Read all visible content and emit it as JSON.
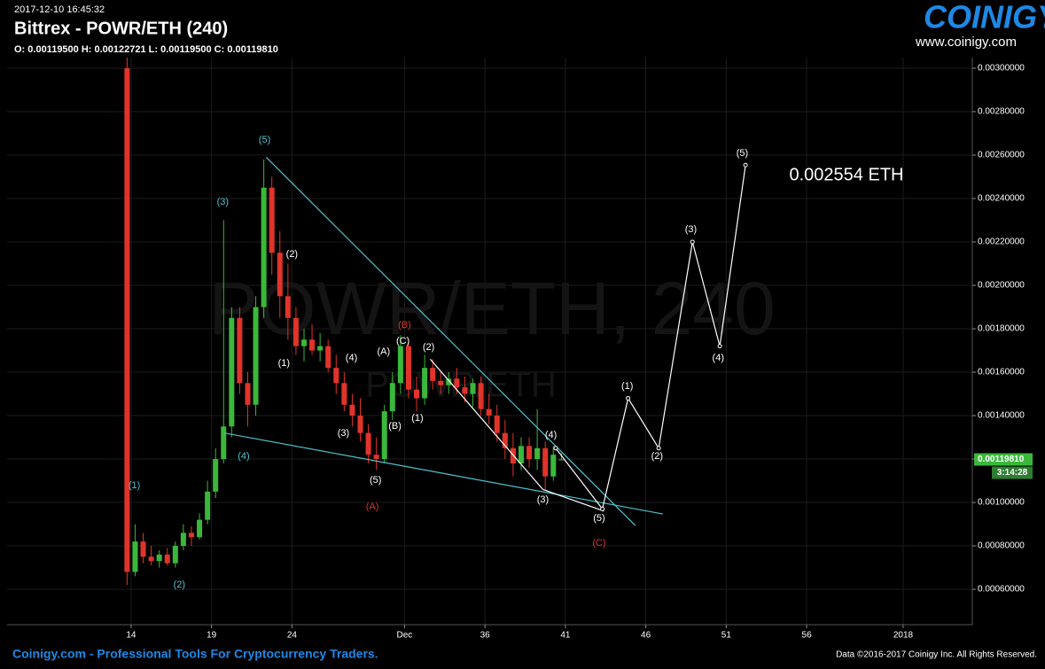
{
  "chart_data": {
    "type": "candlestick",
    "timestamp": "2017-12-10 16:45:32",
    "title": "Bittrex - POWR/ETH (240)",
    "ohlc_text": "O: 0.00119500 H: 0.00122721 L: 0.00119500 C: 0.00119810",
    "watermark": "POWR/ETH, 240",
    "watermark_small": "POWR/ETH",
    "logo": "COINIGY",
    "logo_url": "www.coinigy.com",
    "footer_left": "Coinigy.com - Professional Tools For Cryptocurrency Traders.",
    "footer_right": "Data ©2016-2017 Coinigy Inc. All Rights Reserved.",
    "target_label": "0.002554 ETH",
    "last_price": {
      "value": 0.0011981,
      "label": "0.00119810"
    },
    "countdown": "3:14:28",
    "up_color": "#3bb83b",
    "down_color": "#e0342b",
    "grid": true,
    "xlim": [
      6.29,
      66.3
    ],
    "ylim": [
      0.000437,
      0.003049
    ],
    "xticks": [
      14,
      19,
      24,
      {
        "value": 31,
        "label": "Dec"
      },
      36,
      41,
      46,
      51,
      56,
      {
        "value": 62,
        "label": "2018"
      }
    ],
    "yticks": [
      {
        "value": 0.0006,
        "label": "0.00060000"
      },
      {
        "value": 0.0008,
        "label": "0.00080000"
      },
      {
        "value": 0.001,
        "label": "0.00100000"
      },
      {
        "value": 0.0012,
        "label": "0.00120000"
      },
      {
        "value": 0.0014,
        "label": "0.00140000"
      },
      {
        "value": 0.0016,
        "label": "0.00160000"
      },
      {
        "value": 0.0018,
        "label": "0.00180000"
      },
      {
        "value": 0.002,
        "label": "0.00200000"
      },
      {
        "value": 0.0022,
        "label": "0.00220000"
      },
      {
        "value": 0.0024,
        "label": "0.00240000"
      },
      {
        "value": 0.0026,
        "label": "0.00260000"
      },
      {
        "value": 0.0028,
        "label": "0.00280000"
      },
      {
        "value": 0.003,
        "label": "0.00300000"
      }
    ],
    "candles": [
      {
        "x": 13.75,
        "open": 0.003,
        "high": 0.00305,
        "low": 0.00062,
        "close": 0.00068
      },
      {
        "x": 14.25,
        "open": 0.00068,
        "high": 0.0009,
        "low": 0.00066,
        "close": 0.00082
      },
      {
        "x": 14.75,
        "open": 0.00082,
        "high": 0.00086,
        "low": 0.00072,
        "close": 0.00075
      },
      {
        "x": 15.25,
        "open": 0.00075,
        "high": 0.0008,
        "low": 0.00071,
        "close": 0.00073
      },
      {
        "x": 15.75,
        "open": 0.00073,
        "high": 0.00078,
        "low": 0.0007,
        "close": 0.00076
      },
      {
        "x": 16.25,
        "open": 0.00076,
        "high": 0.00079,
        "low": 0.00071,
        "close": 0.00072
      },
      {
        "x": 16.75,
        "open": 0.00072,
        "high": 0.00082,
        "low": 0.0007,
        "close": 0.0008
      },
      {
        "x": 17.25,
        "open": 0.0008,
        "high": 0.0009,
        "low": 0.00078,
        "close": 0.00086
      },
      {
        "x": 17.75,
        "open": 0.00086,
        "high": 0.00089,
        "low": 0.0008,
        "close": 0.00084
      },
      {
        "x": 18.25,
        "open": 0.00084,
        "high": 0.00095,
        "low": 0.00083,
        "close": 0.00092
      },
      {
        "x": 18.75,
        "open": 0.00092,
        "high": 0.0011,
        "low": 0.0009,
        "close": 0.00105
      },
      {
        "x": 19.25,
        "open": 0.00105,
        "high": 0.00125,
        "low": 0.00102,
        "close": 0.0012
      },
      {
        "x": 19.75,
        "open": 0.0012,
        "high": 0.0023,
        "low": 0.00118,
        "close": 0.00135
      },
      {
        "x": 20.25,
        "open": 0.00135,
        "high": 0.0019,
        "low": 0.0013,
        "close": 0.00185
      },
      {
        "x": 20.75,
        "open": 0.00185,
        "high": 0.0019,
        "low": 0.0015,
        "close": 0.00155
      },
      {
        "x": 21.25,
        "open": 0.00155,
        "high": 0.0016,
        "low": 0.00135,
        "close": 0.00145
      },
      {
        "x": 21.75,
        "open": 0.00145,
        "high": 0.00195,
        "low": 0.0014,
        "close": 0.0019
      },
      {
        "x": 22.25,
        "open": 0.0019,
        "high": 0.00258,
        "low": 0.00185,
        "close": 0.00245
      },
      {
        "x": 22.75,
        "open": 0.00245,
        "high": 0.0025,
        "low": 0.00205,
        "close": 0.00215
      },
      {
        "x": 23.25,
        "open": 0.00215,
        "high": 0.00225,
        "low": 0.00185,
        "close": 0.00195
      },
      {
        "x": 23.75,
        "open": 0.00195,
        "high": 0.0021,
        "low": 0.00175,
        "close": 0.00185
      },
      {
        "x": 24.25,
        "open": 0.00185,
        "high": 0.0019,
        "low": 0.00168,
        "close": 0.00172
      },
      {
        "x": 24.75,
        "open": 0.00172,
        "high": 0.0018,
        "low": 0.00165,
        "close": 0.00175
      },
      {
        "x": 25.25,
        "open": 0.00175,
        "high": 0.00182,
        "low": 0.00168,
        "close": 0.0017
      },
      {
        "x": 25.75,
        "open": 0.0017,
        "high": 0.00178,
        "low": 0.00165,
        "close": 0.00172
      },
      {
        "x": 26.25,
        "open": 0.00172,
        "high": 0.00175,
        "low": 0.0016,
        "close": 0.00162
      },
      {
        "x": 26.75,
        "open": 0.00162,
        "high": 0.00168,
        "low": 0.0015,
        "close": 0.00155
      },
      {
        "x": 27.25,
        "open": 0.00155,
        "high": 0.0016,
        "low": 0.00142,
        "close": 0.00145
      },
      {
        "x": 27.75,
        "open": 0.00145,
        "high": 0.0015,
        "low": 0.00135,
        "close": 0.0014
      },
      {
        "x": 28.25,
        "open": 0.0014,
        "high": 0.00148,
        "low": 0.00128,
        "close": 0.00132
      },
      {
        "x": 28.75,
        "open": 0.00132,
        "high": 0.00136,
        "low": 0.00118,
        "close": 0.00122
      },
      {
        "x": 29.25,
        "open": 0.00122,
        "high": 0.0013,
        "low": 0.00115,
        "close": 0.0012
      },
      {
        "x": 29.75,
        "open": 0.0012,
        "high": 0.00145,
        "low": 0.00118,
        "close": 0.00142
      },
      {
        "x": 30.25,
        "open": 0.00142,
        "high": 0.0016,
        "low": 0.00138,
        "close": 0.00155
      },
      {
        "x": 30.75,
        "open": 0.00155,
        "high": 0.00177,
        "low": 0.0015,
        "close": 0.00172
      },
      {
        "x": 31.25,
        "open": 0.00172,
        "high": 0.00175,
        "low": 0.00148,
        "close": 0.00152
      },
      {
        "x": 31.75,
        "open": 0.00152,
        "high": 0.00158,
        "low": 0.00142,
        "close": 0.00148
      },
      {
        "x": 32.25,
        "open": 0.00148,
        "high": 0.00168,
        "low": 0.00145,
        "close": 0.00162
      },
      {
        "x": 32.75,
        "open": 0.00162,
        "high": 0.00166,
        "low": 0.00152,
        "close": 0.00156
      },
      {
        "x": 33.25,
        "open": 0.00156,
        "high": 0.0016,
        "low": 0.0015,
        "close": 0.00154
      },
      {
        "x": 33.75,
        "open": 0.00154,
        "high": 0.0016,
        "low": 0.0015,
        "close": 0.00157
      },
      {
        "x": 34.25,
        "open": 0.00157,
        "high": 0.00162,
        "low": 0.0015,
        "close": 0.00153
      },
      {
        "x": 34.75,
        "open": 0.00153,
        "high": 0.00158,
        "low": 0.00146,
        "close": 0.0015
      },
      {
        "x": 35.25,
        "open": 0.0015,
        "high": 0.00157,
        "low": 0.00144,
        "close": 0.00155
      },
      {
        "x": 35.75,
        "open": 0.00155,
        "high": 0.00158,
        "low": 0.0014,
        "close": 0.00143
      },
      {
        "x": 36.25,
        "open": 0.00143,
        "high": 0.0015,
        "low": 0.00136,
        "close": 0.0014
      },
      {
        "x": 36.75,
        "open": 0.0014,
        "high": 0.00145,
        "low": 0.00128,
        "close": 0.00132
      },
      {
        "x": 37.25,
        "open": 0.00132,
        "high": 0.00138,
        "low": 0.0012,
        "close": 0.00125
      },
      {
        "x": 37.75,
        "open": 0.00125,
        "high": 0.00132,
        "low": 0.00112,
        "close": 0.00118
      },
      {
        "x": 38.25,
        "open": 0.00118,
        "high": 0.0013,
        "low": 0.00115,
        "close": 0.00126
      },
      {
        "x": 38.75,
        "open": 0.00126,
        "high": 0.0013,
        "low": 0.00116,
        "close": 0.0012
      },
      {
        "x": 39.25,
        "open": 0.0012,
        "high": 0.00143,
        "low": 0.00115,
        "close": 0.00125
      },
      {
        "x": 39.75,
        "open": 0.00125,
        "high": 0.00128,
        "low": 0.00106,
        "close": 0.00112
      },
      {
        "x": 40.25,
        "open": 0.00112,
        "high": 0.00126,
        "low": 0.0011,
        "close": 0.00122
      },
      {
        "x": 40.75,
        "open": 0.001195,
        "high": 0.00122721,
        "low": 0.001195,
        "close": 0.0011981
      }
    ],
    "lines": [
      {
        "color": "#4fc3d0",
        "x": [
          22.4,
          45.35
        ],
        "y": [
          0.00259,
          0.000894
        ]
      },
      {
        "color": "#4fc3d0",
        "x": [
          19.8,
          47.06
        ],
        "y": [
          0.00132,
          0.000947
        ]
      },
      {
        "color": "#ffffff",
        "x": [
          32.6,
          39.6,
          43.4
        ],
        "y": [
          0.00166,
          0.00106,
          0.00096
        ]
      },
      {
        "color": "#ffffff",
        "markers": true,
        "x": [
          40.4,
          43.3,
          44.9,
          46.8,
          48.9,
          50.6,
          52.2
        ],
        "y": [
          0.00125,
          0.00097,
          0.00148,
          0.00125,
          0.0022,
          0.00172,
          0.002554
        ]
      }
    ],
    "annotations": [
      {
        "text": "(1)",
        "x": 14.2,
        "y": 0.001078,
        "color": "#4fc3d0"
      },
      {
        "text": "(2)",
        "x": 17.0,
        "y": 0.00062,
        "color": "#4fc3d0"
      },
      {
        "text": "(3)",
        "x": 19.7,
        "y": 0.002384,
        "color": "#4fc3d0"
      },
      {
        "text": "(4)",
        "x": 21.0,
        "y": 0.001212,
        "color": "#4fc3d0"
      },
      {
        "text": "(5)",
        "x": 22.3,
        "y": 0.00267,
        "color": "#4fc3d0"
      },
      {
        "text": "(2)",
        "x": 24.0,
        "y": 0.002143,
        "color": "#ffffff"
      },
      {
        "text": "(1)",
        "x": 23.5,
        "y": 0.001641,
        "color": "#ffffff"
      },
      {
        "text": "(4)",
        "x": 27.7,
        "y": 0.001665,
        "color": "#ffffff"
      },
      {
        "text": "(3)",
        "x": 27.2,
        "y": 0.001318,
        "color": "#ffffff"
      },
      {
        "text": "(5)",
        "x": 29.2,
        "y": 0.001102,
        "color": "#ffffff"
      },
      {
        "text": "(A)",
        "x": 29.0,
        "y": 0.00098,
        "color": "#d9342b"
      },
      {
        "text": "(A)",
        "x": 29.7,
        "y": 0.001694,
        "color": "#ffffff"
      },
      {
        "text": "(B)",
        "x": 30.4,
        "y": 0.001351,
        "color": "#ffffff"
      },
      {
        "text": "(B)",
        "x": 31.0,
        "y": 0.001816,
        "color": "#d9342b"
      },
      {
        "text": "(C)",
        "x": 30.9,
        "y": 0.001743,
        "color": "#ffffff"
      },
      {
        "text": "(2)",
        "x": 32.5,
        "y": 0.001714,
        "color": "#ffffff"
      },
      {
        "text": "(1)",
        "x": 31.8,
        "y": 0.001388,
        "color": "#ffffff"
      },
      {
        "text": "(4)",
        "x": 40.1,
        "y": 0.00131,
        "color": "#ffffff"
      },
      {
        "text": "(3)",
        "x": 39.6,
        "y": 0.001012,
        "color": "#ffffff"
      },
      {
        "text": "(5)",
        "x": 43.1,
        "y": 0.000927,
        "color": "#ffffff"
      },
      {
        "text": "(C)",
        "x": 43.1,
        "y": 0.000812,
        "color": "#d9342b"
      },
      {
        "text": "(1)",
        "x": 44.85,
        "y": 0.001535,
        "color": "#ffffff"
      },
      {
        "text": "(2)",
        "x": 46.7,
        "y": 0.001212,
        "color": "#ffffff"
      },
      {
        "text": "(3)",
        "x": 48.8,
        "y": 0.002257,
        "color": "#ffffff"
      },
      {
        "text": "(4)",
        "x": 50.5,
        "y": 0.001665,
        "color": "#ffffff"
      },
      {
        "text": "(5)",
        "x": 52.0,
        "y": 0.002608,
        "color": "#ffffff"
      }
    ]
  }
}
